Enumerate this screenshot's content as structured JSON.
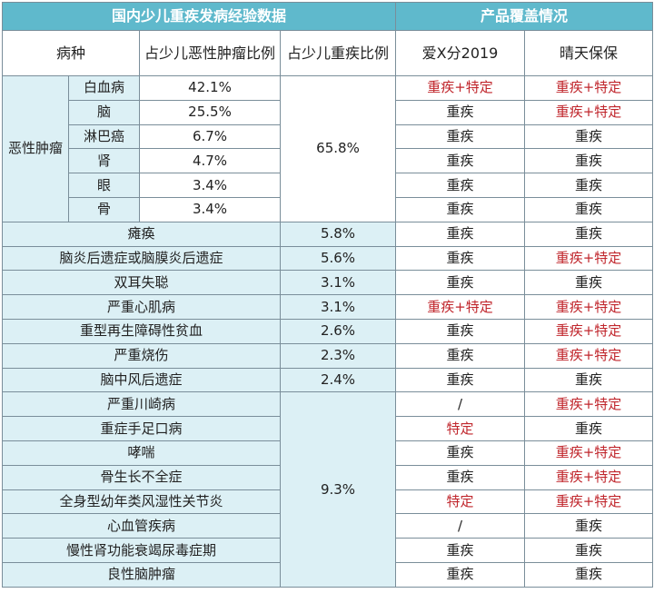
{
  "header": {
    "left_title": "国内少儿重疾发病经验数据",
    "right_title": "产品覆盖情况"
  },
  "columns": [
    "病种",
    "占少儿恶性肿瘤比例",
    "占少儿重疾比例",
    "爱X分2019",
    "晴天保保"
  ],
  "colors": {
    "header_bg": "#5fb9cc",
    "light_blue": "#dcf0f5",
    "red_text": "#c0262c",
    "border": "#7a8e9a"
  },
  "malignant": {
    "group_label": "恶性肿瘤",
    "group_ratio": "65.8%",
    "rows": [
      {
        "sub": "白血病",
        "ratio": "42.1%",
        "p1": "重疾+特定",
        "p1_red": true,
        "p2": "重疾+特定",
        "p2_red": true
      },
      {
        "sub": "脑",
        "ratio": "25.5%",
        "p1": "重疾",
        "p1_red": false,
        "p2": "重疾+特定",
        "p2_red": true
      },
      {
        "sub": "淋巴癌",
        "ratio": "6.7%",
        "p1": "重疾",
        "p1_red": false,
        "p2": "重疾",
        "p2_red": false
      },
      {
        "sub": "肾",
        "ratio": "4.7%",
        "p1": "重疾",
        "p1_red": false,
        "p2": "重疾",
        "p2_red": false
      },
      {
        "sub": "眼",
        "ratio": "3.4%",
        "p1": "重疾",
        "p1_red": false,
        "p2": "重疾",
        "p2_red": false
      },
      {
        "sub": "骨",
        "ratio": "3.4%",
        "p1": "重疾",
        "p1_red": false,
        "p2": "重疾",
        "p2_red": false
      }
    ]
  },
  "individual_rows": [
    {
      "name": "瘫痪",
      "ratio": "5.8%",
      "p1": "重疾",
      "p1_red": false,
      "p2": "重疾",
      "p2_red": false
    },
    {
      "name": "脑炎后遗症或脑膜炎后遗症",
      "ratio": "5.6%",
      "p1": "重疾",
      "p1_red": false,
      "p2": "重疾+特定",
      "p2_red": true
    },
    {
      "name": "双耳失聪",
      "ratio": "3.1%",
      "p1": "重疾",
      "p1_red": false,
      "p2": "重疾",
      "p2_red": false
    },
    {
      "name": "严重心肌病",
      "ratio": "3.1%",
      "p1": "重疾+特定",
      "p1_red": true,
      "p2": "重疾+特定",
      "p2_red": true
    },
    {
      "name": "重型再生障碍性贫血",
      "ratio": "2.6%",
      "p1": "重疾",
      "p1_red": false,
      "p2": "重疾+特定",
      "p2_red": true
    },
    {
      "name": "严重烧伤",
      "ratio": "2.3%",
      "p1": "重疾",
      "p1_red": false,
      "p2": "重疾+特定",
      "p2_red": true
    },
    {
      "name": "脑中风后遗症",
      "ratio": "2.4%",
      "p1": "重疾",
      "p1_red": false,
      "p2": "重疾",
      "p2_red": false
    }
  ],
  "grouped": {
    "group_ratio": "9.3%",
    "rows": [
      {
        "name": "严重川崎病",
        "p1": "/",
        "p1_red": false,
        "p2": "重疾+特定",
        "p2_red": true
      },
      {
        "name": "重症手足口病",
        "p1": "特定",
        "p1_red": true,
        "p2": "重疾",
        "p2_red": false
      },
      {
        "name": "哮喘",
        "p1": "重疾",
        "p1_red": false,
        "p2": "重疾+特定",
        "p2_red": true
      },
      {
        "name": "骨生长不全症",
        "p1": "重疾",
        "p1_red": false,
        "p2": "重疾+特定",
        "p2_red": true
      },
      {
        "name": "全身型幼年类风湿性关节炎",
        "p1": "特定",
        "p1_red": true,
        "p2": "重疾+特定",
        "p2_red": true
      },
      {
        "name": "心血管疾病",
        "p1": "/",
        "p1_red": false,
        "p2": "重疾",
        "p2_red": false
      },
      {
        "name": "慢性肾功能衰竭尿毒症期",
        "p1": "重疾",
        "p1_red": false,
        "p2": "重疾",
        "p2_red": false
      },
      {
        "name": "良性脑肿瘤",
        "p1": "重疾",
        "p1_red": false,
        "p2": "重疾",
        "p2_red": false
      }
    ]
  }
}
